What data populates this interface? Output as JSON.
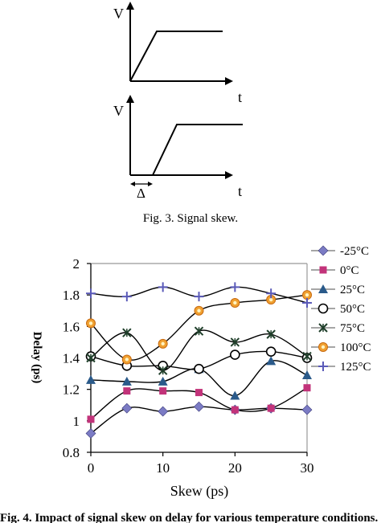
{
  "figure3": {
    "top_v": "V",
    "top_t": "t",
    "bottom_v": "V",
    "bottom_t": "t",
    "delta": "Δ",
    "caption": "Fig. 3. Signal skew."
  },
  "chart_data": {
    "type": "line",
    "xlabel": "Skew (ps)",
    "ylabel": "Delay (ps)",
    "xlim": [
      0,
      30
    ],
    "ylim": [
      0.8,
      2
    ],
    "x_ticks": [
      "0",
      "10",
      "20",
      "30"
    ],
    "y_ticks": [
      "0.8",
      "1",
      "1.2",
      "1.4",
      "1.6",
      "1.8",
      "2"
    ],
    "grid": false,
    "legend_position": "right",
    "x": [
      0,
      5,
      10,
      15,
      20,
      25,
      30
    ],
    "series": [
      {
        "name": "-25°C",
        "marker": "diamond",
        "color": "#7b7bc4",
        "values": [
          0.92,
          1.08,
          1.06,
          1.09,
          1.07,
          1.08,
          1.07
        ]
      },
      {
        "name": "0°C",
        "marker": "square",
        "color": "#c2337a",
        "values": [
          1.01,
          1.19,
          1.19,
          1.18,
          1.07,
          1.08,
          1.21
        ]
      },
      {
        "name": "25°C",
        "marker": "triangle",
        "color": "#2a5a8a",
        "values": [
          1.26,
          1.25,
          1.25,
          1.33,
          1.16,
          1.38,
          1.29
        ]
      },
      {
        "name": "50°C",
        "marker": "circle-open",
        "color": "#000000",
        "values": [
          1.41,
          1.35,
          1.35,
          1.33,
          1.42,
          1.44,
          1.4
        ]
      },
      {
        "name": "75°C",
        "marker": "x-star",
        "color": "#1f3f2a",
        "values": [
          1.4,
          1.56,
          1.32,
          1.57,
          1.5,
          1.55,
          1.41
        ]
      },
      {
        "name": "100°C",
        "marker": "circle-orange",
        "color": "#f0a030",
        "values": [
          1.62,
          1.39,
          1.49,
          1.7,
          1.75,
          1.77,
          1.8
        ]
      },
      {
        "name": "125°C",
        "marker": "plus",
        "color": "#5a5ab8",
        "values": [
          1.81,
          1.79,
          1.85,
          1.79,
          1.85,
          1.81,
          1.75
        ]
      }
    ]
  },
  "bottom_caption": "Fig. 4. Impact of signal skew on delay for various temperature conditions."
}
